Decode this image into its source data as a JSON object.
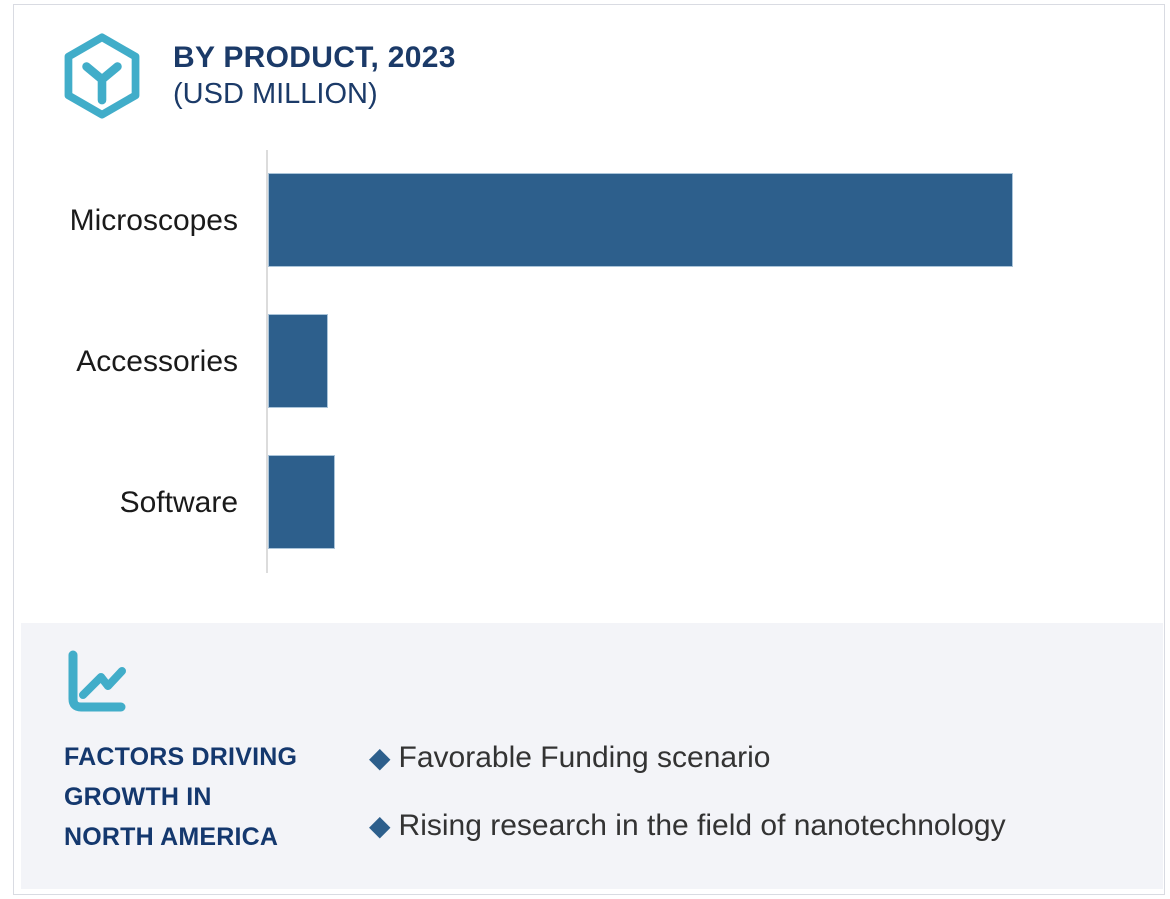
{
  "header": {
    "logo_icon": "hexagon-y-logo-icon",
    "title_line1": "BY PRODUCT, 2023",
    "title_line2": "(USD MILLION)"
  },
  "chart_data": {
    "type": "bar",
    "orientation": "horizontal",
    "title": "BY PRODUCT, 2023 (USD MILLION)",
    "unit": "USD Million",
    "categories": [
      "Microscopes",
      "Accessories",
      "Software"
    ],
    "values": [
      100,
      8,
      9
    ],
    "values_are_relative_estimates": true,
    "xlim": [
      0,
      100
    ],
    "grid": false,
    "legend": false,
    "value_labels_visible": false,
    "bar_color": "#2d5f8c"
  },
  "factors_panel": {
    "icon": "line-chart-icon",
    "heading_lines": [
      "FACTORS DRIVING",
      "GROWTH IN",
      "NORTH AMERICA"
    ],
    "bullet_marker": "◆",
    "bullets": [
      "Favorable Funding scenario",
      "Rising research in the field of nanotechnology"
    ]
  },
  "colors": {
    "navy": "#1b3a68",
    "heading_navy": "#14386e",
    "bar_blue": "#2d5f8c",
    "bar_border": "#aac4d9",
    "teal": "#41adc9",
    "panel_bg": "#f3f4f8",
    "axis_gray": "#dcdcdc",
    "card_border": "#d9dbe2",
    "label_text": "#1a1a1a",
    "bullet_text": "#333333"
  }
}
